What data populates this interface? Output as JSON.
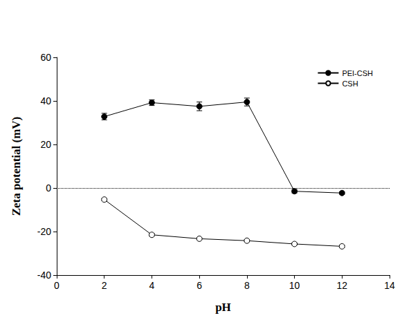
{
  "chart_data": {
    "type": "line",
    "x_label": "pH",
    "y_label": "Zeta potential (mV)",
    "xlim": [
      0,
      14
    ],
    "xticks": [
      0,
      2,
      4,
      6,
      8,
      10,
      12,
      14
    ],
    "ylim": [
      -40,
      60
    ],
    "yticks": [
      -40,
      -20,
      0,
      20,
      40,
      60
    ],
    "grid": false,
    "legend": "upper right",
    "hlines": [
      {
        "y": 0,
        "line_style": "dotted"
      }
    ],
    "series": [
      {
        "name": "PEI-CSH",
        "color": "#000000",
        "marker": "circle",
        "line_style": "solid",
        "x": [
          2,
          4,
          6,
          8,
          10,
          12
        ],
        "values": [
          32.8,
          39.2,
          37.5,
          39.5,
          -1.5,
          -2.3
        ],
        "error": [
          1.5,
          1.3,
          2.0,
          1.8,
          0.8,
          0.6
        ]
      },
      {
        "name": "CSH",
        "color": "#000000",
        "marker": "circle_open",
        "line_style": "solid",
        "x": [
          2,
          4,
          6,
          8,
          10,
          12
        ],
        "values": [
          -5.3,
          -21.5,
          -23.3,
          -24.2,
          -25.7,
          -26.8
        ],
        "error": [
          0.5,
          0.6,
          0.5,
          0.5,
          0.5,
          0.6
        ]
      }
    ]
  }
}
